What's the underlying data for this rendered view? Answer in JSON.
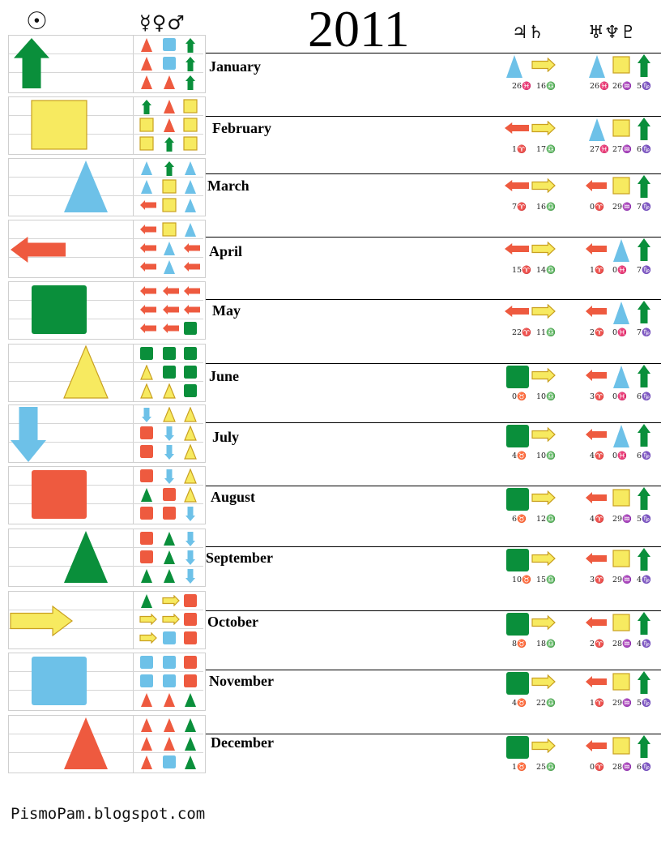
{
  "title": "2011",
  "header": {
    "sun_glyph": "☉",
    "inner_glyphs": "☿♀♂",
    "middle_glyphs": "♃♄",
    "outer_glyphs": "♅♆♇"
  },
  "credit": "PismoPam.blogspot.com",
  "colors": {
    "fire": "#ee5a3f",
    "earth": "#0a8f3b",
    "air": "#f7ea60",
    "water": "#6dc1e8",
    "air_border": "#c9a020"
  },
  "icon_legend": {
    "triangle": "fire-sign",
    "square": "earth-sign",
    "arrow-up": "cardinal-up",
    "arrow-left": "cardinal-left",
    "arrow-right": "cardinal-right",
    "arrow-down": "cardinal-down"
  },
  "months": [
    {
      "name": "January",
      "sun": [
        "arrow-up",
        "earth"
      ],
      "inner": [
        [
          [
            "tri",
            "fire"
          ],
          [
            "sq",
            "water"
          ],
          [
            "up",
            "earth"
          ]
        ],
        [
          [
            "tri",
            "fire"
          ],
          [
            "sq",
            "water"
          ],
          [
            "up",
            "earth"
          ]
        ],
        [
          [
            "tri",
            "fire"
          ],
          [
            "tri",
            "fire"
          ],
          [
            "up",
            "earth"
          ]
        ]
      ],
      "outer": [
        [
          "tri",
          "water"
        ],
        [
          "right",
          "air"
        ],
        [
          "tri",
          "water"
        ],
        [
          "sq",
          "air"
        ],
        [
          "up",
          "earth"
        ]
      ],
      "degrees": [
        "26♓",
        "16♎",
        "26♓",
        "26♒",
        "5♑"
      ]
    },
    {
      "name": "February",
      "sun": [
        "square",
        "air"
      ],
      "inner": [
        [
          [
            "up",
            "earth"
          ],
          [
            "tri",
            "fire"
          ],
          [
            "sq",
            "air"
          ]
        ],
        [
          [
            "sq",
            "air"
          ],
          [
            "tri",
            "fire"
          ],
          [
            "sq",
            "air"
          ]
        ],
        [
          [
            "sq",
            "air"
          ],
          [
            "up",
            "earth"
          ],
          [
            "sq",
            "air"
          ]
        ]
      ],
      "outer": [
        [
          "left",
          "fire"
        ],
        [
          "right",
          "air"
        ],
        [
          "tri",
          "water"
        ],
        [
          "sq",
          "air"
        ],
        [
          "up",
          "earth"
        ]
      ],
      "degrees": [
        "1♈",
        "17♎",
        "27♓",
        "27♒",
        "6♑"
      ]
    },
    {
      "name": "March",
      "sun": [
        "triangle",
        "water"
      ],
      "inner": [
        [
          [
            "tri",
            "water"
          ],
          [
            "up",
            "earth"
          ],
          [
            "tri",
            "water"
          ]
        ],
        [
          [
            "tri",
            "water"
          ],
          [
            "sq",
            "air"
          ],
          [
            "tri",
            "water"
          ]
        ],
        [
          [
            "left",
            "fire"
          ],
          [
            "sq",
            "air"
          ],
          [
            "tri",
            "water"
          ]
        ]
      ],
      "outer": [
        [
          "left",
          "fire"
        ],
        [
          "right",
          "air"
        ],
        [
          "left",
          "fire"
        ],
        [
          "sq",
          "air"
        ],
        [
          "up",
          "earth"
        ]
      ],
      "degrees": [
        "7♈",
        "16♎",
        "0♈",
        "29♒",
        "7♑"
      ]
    },
    {
      "name": "April",
      "sun": [
        "arrow-left",
        "fire"
      ],
      "inner": [
        [
          [
            "left",
            "fire"
          ],
          [
            "sq",
            "air"
          ],
          [
            "tri",
            "water"
          ]
        ],
        [
          [
            "left",
            "fire"
          ],
          [
            "tri",
            "water"
          ],
          [
            "left",
            "fire"
          ]
        ],
        [
          [
            "left",
            "fire"
          ],
          [
            "tri",
            "water"
          ],
          [
            "left",
            "fire"
          ]
        ]
      ],
      "outer": [
        [
          "left",
          "fire"
        ],
        [
          "right",
          "air"
        ],
        [
          "left",
          "fire"
        ],
        [
          "tri",
          "water"
        ],
        [
          "up",
          "earth"
        ]
      ],
      "degrees": [
        "15♈",
        "14♎",
        "1♈",
        "0♓",
        "7♑"
      ]
    },
    {
      "name": "May",
      "sun": [
        "square",
        "earth"
      ],
      "inner": [
        [
          [
            "left",
            "fire"
          ],
          [
            "left",
            "fire"
          ],
          [
            "left",
            "fire"
          ]
        ],
        [
          [
            "left",
            "fire"
          ],
          [
            "left",
            "fire"
          ],
          [
            "left",
            "fire"
          ]
        ],
        [
          [
            "left",
            "fire"
          ],
          [
            "left",
            "fire"
          ],
          [
            "sq",
            "earth"
          ]
        ]
      ],
      "outer": [
        [
          "left",
          "fire"
        ],
        [
          "right",
          "air"
        ],
        [
          "left",
          "fire"
        ],
        [
          "tri",
          "water"
        ],
        [
          "up",
          "earth"
        ]
      ],
      "degrees": [
        "22♈",
        "11♎",
        "2♈",
        "0♓",
        "7♑"
      ]
    },
    {
      "name": "June",
      "sun": [
        "triangle",
        "air"
      ],
      "inner": [
        [
          [
            "sq",
            "earth"
          ],
          [
            "sq",
            "earth"
          ],
          [
            "sq",
            "earth"
          ]
        ],
        [
          [
            "tri",
            "air"
          ],
          [
            "sq",
            "earth"
          ],
          [
            "sq",
            "earth"
          ]
        ],
        [
          [
            "tri",
            "air"
          ],
          [
            "tri",
            "air"
          ],
          [
            "sq",
            "earth"
          ]
        ]
      ],
      "outer": [
        [
          "sq",
          "earth"
        ],
        [
          "right",
          "air"
        ],
        [
          "left",
          "fire"
        ],
        [
          "tri",
          "water"
        ],
        [
          "up",
          "earth"
        ]
      ],
      "degrees": [
        "0♉",
        "10♎",
        "3♈",
        "0♓",
        "6♑"
      ]
    },
    {
      "name": "July",
      "sun": [
        "arrow-down",
        "water"
      ],
      "inner": [
        [
          [
            "down",
            "water"
          ],
          [
            "tri",
            "air"
          ],
          [
            "tri",
            "air"
          ]
        ],
        [
          [
            "sq",
            "fire"
          ],
          [
            "down",
            "water"
          ],
          [
            "tri",
            "air"
          ]
        ],
        [
          [
            "sq",
            "fire"
          ],
          [
            "down",
            "water"
          ],
          [
            "tri",
            "air"
          ]
        ]
      ],
      "outer": [
        [
          "sq",
          "earth"
        ],
        [
          "right",
          "air"
        ],
        [
          "left",
          "fire"
        ],
        [
          "tri",
          "water"
        ],
        [
          "up",
          "earth"
        ]
      ],
      "degrees": [
        "4♉",
        "10♎",
        "4♈",
        "0♓",
        "6♑"
      ]
    },
    {
      "name": "August",
      "sun": [
        "square",
        "fire"
      ],
      "inner": [
        [
          [
            "sq",
            "fire"
          ],
          [
            "down",
            "water"
          ],
          [
            "tri",
            "air"
          ]
        ],
        [
          [
            "tri",
            "earth"
          ],
          [
            "sq",
            "fire"
          ],
          [
            "tri",
            "air"
          ]
        ],
        [
          [
            "sq",
            "fire"
          ],
          [
            "sq",
            "fire"
          ],
          [
            "down",
            "water"
          ]
        ]
      ],
      "outer": [
        [
          "sq",
          "earth"
        ],
        [
          "right",
          "air"
        ],
        [
          "left",
          "fire"
        ],
        [
          "sq",
          "air"
        ],
        [
          "up",
          "earth"
        ]
      ],
      "degrees": [
        "6♉",
        "12♎",
        "4♈",
        "29♒",
        "5♑"
      ]
    },
    {
      "name": "September",
      "sun": [
        "triangle",
        "earth"
      ],
      "inner": [
        [
          [
            "sq",
            "fire"
          ],
          [
            "tri",
            "earth"
          ],
          [
            "down",
            "water"
          ]
        ],
        [
          [
            "sq",
            "fire"
          ],
          [
            "tri",
            "earth"
          ],
          [
            "down",
            "water"
          ]
        ],
        [
          [
            "tri",
            "earth"
          ],
          [
            "tri",
            "earth"
          ],
          [
            "down",
            "water"
          ]
        ]
      ],
      "outer": [
        [
          "sq",
          "earth"
        ],
        [
          "right",
          "air"
        ],
        [
          "left",
          "fire"
        ],
        [
          "sq",
          "air"
        ],
        [
          "up",
          "earth"
        ]
      ],
      "degrees": [
        "10♉",
        "15♎",
        "3♈",
        "29♒",
        "4♑"
      ]
    },
    {
      "name": "October",
      "sun": [
        "arrow-right",
        "air"
      ],
      "inner": [
        [
          [
            "tri",
            "earth"
          ],
          [
            "right",
            "air"
          ],
          [
            "sq",
            "fire"
          ]
        ],
        [
          [
            "right",
            "air"
          ],
          [
            "right",
            "air"
          ],
          [
            "sq",
            "fire"
          ]
        ],
        [
          [
            "right",
            "air"
          ],
          [
            "sq",
            "water"
          ],
          [
            "sq",
            "fire"
          ]
        ]
      ],
      "outer": [
        [
          "sq",
          "earth"
        ],
        [
          "right",
          "air"
        ],
        [
          "left",
          "fire"
        ],
        [
          "sq",
          "air"
        ],
        [
          "up",
          "earth"
        ]
      ],
      "degrees": [
        "8♉",
        "18♎",
        "2♈",
        "28♒",
        "4♑"
      ]
    },
    {
      "name": "November",
      "sun": [
        "square",
        "water"
      ],
      "inner": [
        [
          [
            "sq",
            "water"
          ],
          [
            "sq",
            "water"
          ],
          [
            "sq",
            "fire"
          ]
        ],
        [
          [
            "sq",
            "water"
          ],
          [
            "sq",
            "water"
          ],
          [
            "sq",
            "fire"
          ]
        ],
        [
          [
            "tri",
            "fire"
          ],
          [
            "tri",
            "fire"
          ],
          [
            "tri",
            "earth"
          ]
        ]
      ],
      "outer": [
        [
          "sq",
          "earth"
        ],
        [
          "right",
          "air"
        ],
        [
          "left",
          "fire"
        ],
        [
          "sq",
          "air"
        ],
        [
          "up",
          "earth"
        ]
      ],
      "degrees": [
        "4♉",
        "22♎",
        "1♈",
        "29♒",
        "5♑"
      ]
    },
    {
      "name": "December",
      "sun": [
        "triangle",
        "fire"
      ],
      "inner": [
        [
          [
            "tri",
            "fire"
          ],
          [
            "tri",
            "fire"
          ],
          [
            "tri",
            "earth"
          ]
        ],
        [
          [
            "tri",
            "fire"
          ],
          [
            "tri",
            "fire"
          ],
          [
            "tri",
            "earth"
          ]
        ],
        [
          [
            "tri",
            "fire"
          ],
          [
            "sq",
            "water"
          ],
          [
            "tri",
            "earth"
          ]
        ]
      ],
      "outer": [
        [
          "sq",
          "earth"
        ],
        [
          "right",
          "air"
        ],
        [
          "left",
          "fire"
        ],
        [
          "sq",
          "air"
        ],
        [
          "up",
          "earth"
        ]
      ],
      "degrees": [
        "1♉",
        "25♎",
        "0♈",
        "28♒",
        "6♑"
      ]
    }
  ]
}
